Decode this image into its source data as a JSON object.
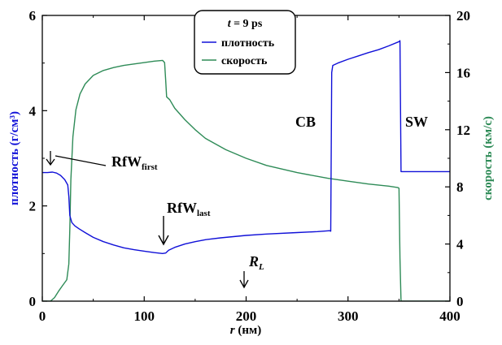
{
  "chart_data": {
    "type": "line",
    "xlabel_var": "r",
    "xlabel_unit": "(нм)",
    "ylabel_left": "плотность (г/см³)",
    "ylabel_right": "скорость (км/с)",
    "xlim": [
      0,
      400
    ],
    "ylim_left": [
      0,
      6
    ],
    "ylim_right": [
      0,
      20
    ],
    "x_ticks": [
      "0",
      "100",
      "200",
      "300",
      "400"
    ],
    "y_left_ticks": [
      "0",
      "2",
      "4",
      "6"
    ],
    "y_right_ticks": [
      "0",
      "4",
      "8",
      "12",
      "16",
      "20"
    ],
    "legend": {
      "title_var": "t",
      "title_rest": " = 9 ps",
      "entries": [
        "плотность",
        "скорость"
      ]
    },
    "colors": {
      "density": "#1010d8",
      "velocity": "#2e8b57"
    },
    "annotations": {
      "rfw_first": "RfW",
      "rfw_first_sub": "first",
      "rfw_last": "RfW",
      "rfw_last_sub": "last",
      "rl": "R",
      "rl_sub": "L",
      "cb": "CB",
      "sw": "SW"
    },
    "series": [
      {
        "name": "плотность",
        "axis": "left",
        "x": [
          0,
          5,
          10,
          14,
          18,
          22,
          25,
          26,
          27,
          29,
          32,
          36,
          42,
          50,
          60,
          70,
          80,
          90,
          100,
          110,
          118,
          121,
          124,
          130,
          140,
          150,
          160,
          175,
          200,
          220,
          250,
          270,
          282,
          283,
          284,
          285,
          290,
          300,
          310,
          320,
          330,
          340,
          350,
          351,
          352,
          400
        ],
        "y": [
          2.7,
          2.7,
          2.71,
          2.69,
          2.64,
          2.55,
          2.44,
          2.2,
          1.8,
          1.65,
          1.58,
          1.52,
          1.44,
          1.34,
          1.25,
          1.18,
          1.12,
          1.08,
          1.05,
          1.02,
          1.0,
          1.01,
          1.07,
          1.13,
          1.2,
          1.25,
          1.29,
          1.33,
          1.38,
          1.41,
          1.44,
          1.46,
          1.48,
          1.47,
          4.8,
          4.95,
          5.0,
          5.08,
          5.15,
          5.22,
          5.28,
          5.36,
          5.45,
          5.47,
          2.72,
          2.72
        ]
      },
      {
        "name": "скорость",
        "axis": "right",
        "x": [
          0,
          8,
          12,
          16,
          20,
          24,
          26,
          27,
          28,
          30,
          33,
          37,
          42,
          50,
          60,
          70,
          80,
          90,
          100,
          110,
          118,
          120,
          121,
          122,
          125,
          130,
          140,
          150,
          160,
          180,
          200,
          220,
          250,
          280,
          300,
          320,
          340,
          349,
          350,
          351,
          352,
          400
        ],
        "y": [
          0,
          0,
          0.25,
          0.7,
          1.1,
          1.5,
          2.6,
          5.0,
          8.5,
          11.5,
          13.4,
          14.5,
          15.2,
          15.8,
          16.15,
          16.35,
          16.5,
          16.6,
          16.7,
          16.8,
          16.85,
          16.7,
          15.5,
          14.3,
          14.1,
          13.5,
          12.7,
          12.0,
          11.4,
          10.6,
          10.0,
          9.5,
          9.0,
          8.6,
          8.4,
          8.2,
          8.05,
          7.95,
          7.9,
          3.0,
          0,
          0
        ]
      }
    ]
  }
}
